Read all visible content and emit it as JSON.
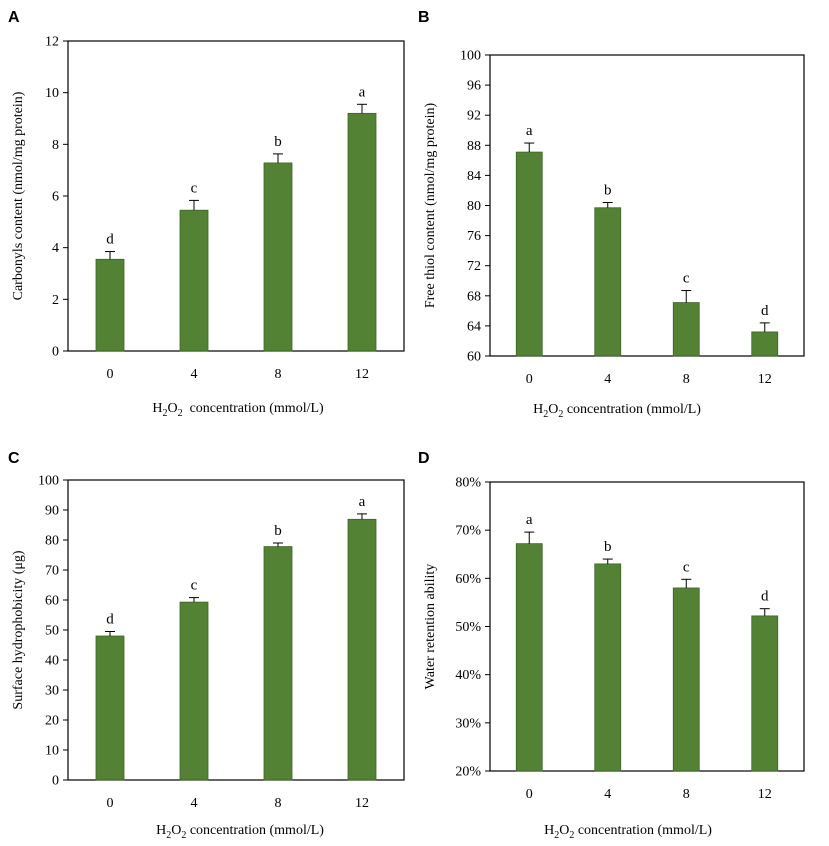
{
  "figure": {
    "bar_color": "#548235",
    "bar_edge_color": "#3e6326",
    "text_color": "#000000"
  },
  "chart_data": [
    {
      "panel": "A",
      "type": "bar",
      "categories": [
        "0",
        "4",
        "8",
        "12"
      ],
      "values": [
        3.55,
        5.45,
        7.28,
        9.2
      ],
      "errors": [
        0.3,
        0.38,
        0.35,
        0.35
      ],
      "significance": [
        "d",
        "c",
        "b",
        "a"
      ],
      "ylabel": "Carbonyls content (nmol/mg protein)",
      "xlabel": {
        "pre": "H",
        "sub1": "2",
        "mid": "O",
        "sub2": "2",
        "post": "  concentration (mmol/L)"
      },
      "ylim": [
        0,
        12
      ],
      "yticks": [
        0,
        2,
        4,
        6,
        8,
        10,
        12
      ],
      "ytick_labels": [
        "0",
        "2",
        "4",
        "6",
        "8",
        "10",
        "12"
      ]
    },
    {
      "panel": "B",
      "type": "bar",
      "categories": [
        "0",
        "4",
        "8",
        "12"
      ],
      "values": [
        87.1,
        79.7,
        67.1,
        63.2
      ],
      "errors": [
        1.2,
        0.7,
        1.6,
        1.2
      ],
      "significance": [
        "a",
        "b",
        "c",
        "d"
      ],
      "ylabel": "Free thiol content (nmol/mg protein)",
      "xlabel": {
        "pre": "H",
        "sub1": "2",
        "mid": "O",
        "sub2": "2",
        "post": " concentration (mmol/L)"
      },
      "ylim": [
        60,
        100
      ],
      "yticks": [
        60,
        64,
        68,
        72,
        76,
        80,
        84,
        88,
        92,
        96,
        100
      ],
      "ytick_labels": [
        "60",
        "64",
        "68",
        "72",
        "76",
        "80",
        "84",
        "88",
        "92",
        "96",
        "100"
      ]
    },
    {
      "panel": "C",
      "type": "bar",
      "categories": [
        "0",
        "4",
        "8",
        "12"
      ],
      "values": [
        48,
        59.3,
        77.8,
        86.9
      ],
      "errors": [
        1.5,
        1.5,
        1.2,
        1.8
      ],
      "significance": [
        "d",
        "c",
        "b",
        "a"
      ],
      "ylabel": "Surface hydrophobicity (μg)",
      "xlabel": {
        "pre": "H",
        "sub1": "2",
        "mid": "O",
        "sub2": "2",
        "post": " concentration (mmol/L)"
      },
      "ylim": [
        0,
        100
      ],
      "yticks": [
        0,
        10,
        20,
        30,
        40,
        50,
        60,
        70,
        80,
        90,
        100
      ],
      "ytick_labels": [
        "0",
        "10",
        "20",
        "30",
        "40",
        "50",
        "60",
        "70",
        "80",
        "90",
        "100"
      ]
    },
    {
      "panel": "D",
      "type": "bar",
      "categories": [
        "0",
        "4",
        "8",
        "12"
      ],
      "values": [
        0.672,
        0.63,
        0.58,
        0.522
      ],
      "errors": [
        0.024,
        0.01,
        0.018,
        0.015
      ],
      "significance": [
        "a",
        "b",
        "c",
        "d"
      ],
      "ylabel": "Water retention ability",
      "xlabel": {
        "pre": "H",
        "sub1": "2",
        "mid": "O",
        "sub2": "2",
        "post": " concentration (mmol/L)"
      },
      "ylim": [
        0.2,
        0.8
      ],
      "yticks": [
        0.2,
        0.3,
        0.4,
        0.5,
        0.6,
        0.7,
        0.8
      ],
      "ytick_labels": [
        "20%",
        "30%",
        "40%",
        "50%",
        "60%",
        "70%",
        "80%"
      ]
    }
  ]
}
